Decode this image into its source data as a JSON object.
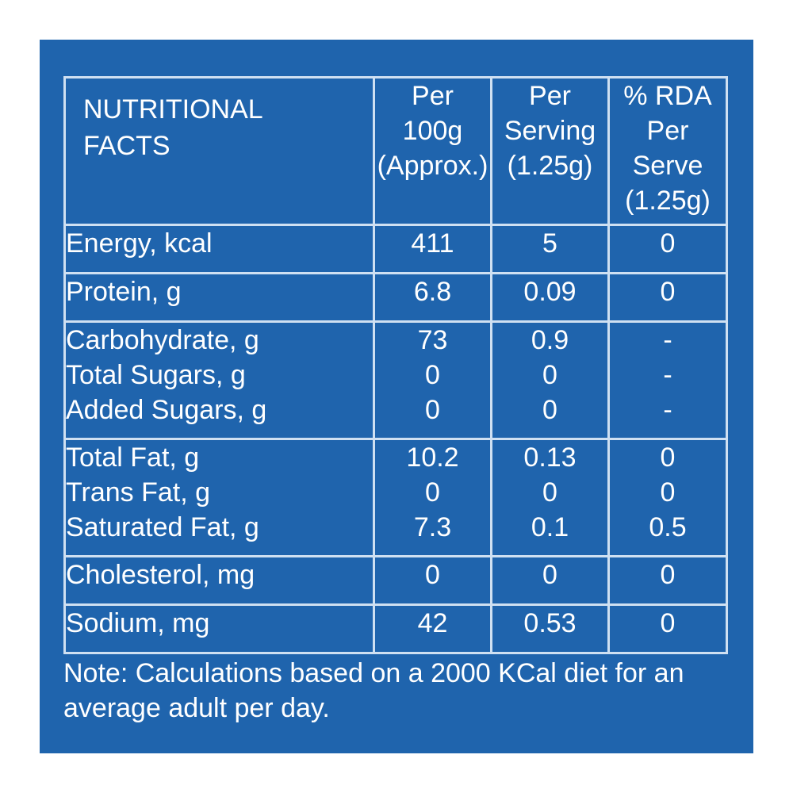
{
  "header": {
    "title_line1": "NUTRITIONAL",
    "title_line2": "FACTS",
    "col_per100": [
      "Per",
      "100g",
      "(Approx.)"
    ],
    "col_serving": [
      "Per",
      "Serving",
      "(1.25g)"
    ],
    "col_rda": [
      "% RDA",
      "Per",
      "Serve",
      "(1.25g)"
    ]
  },
  "rows": {
    "energy": {
      "label": "Energy, kcal",
      "per100": "411",
      "serving": "5",
      "rda": "0"
    },
    "protein": {
      "label": "Protein, g",
      "per100": "6.8",
      "serving": "0.09",
      "rda": "0"
    },
    "carbs": {
      "label": "Carbohydrate, g",
      "per100": "73",
      "serving": "0.9",
      "rda": "-",
      "sub1": {
        "label": "Total Sugars, g",
        "per100": "0",
        "serving": "0",
        "rda": "-"
      },
      "sub2": {
        "label": "Added Sugars, g",
        "per100": "0",
        "serving": "0",
        "rda": "-"
      }
    },
    "fat": {
      "label": "Total Fat, g",
      "per100": "10.2",
      "serving": "0.13",
      "rda": "0",
      "sub1": {
        "label": "Trans Fat, g",
        "per100": "0",
        "serving": "0",
        "rda": "0"
      },
      "sub2": {
        "label": "Saturated Fat, g",
        "per100": "7.3",
        "serving": "0.1",
        "rda": "0.5"
      }
    },
    "cholesterol": {
      "label": "Cholesterol, mg",
      "per100": "0",
      "serving": "0",
      "rda": "0"
    },
    "sodium": {
      "label": "Sodium, mg",
      "per100": "42",
      "serving": "0.53",
      "rda": "0"
    }
  },
  "note": {
    "line1": "Note: Calculations based on a 2000 KCal diet for an",
    "line2": "average adult per day."
  },
  "colors": {
    "panel": "#1f64ad",
    "rule": "#cfe0f2",
    "text": "#ffffff"
  }
}
